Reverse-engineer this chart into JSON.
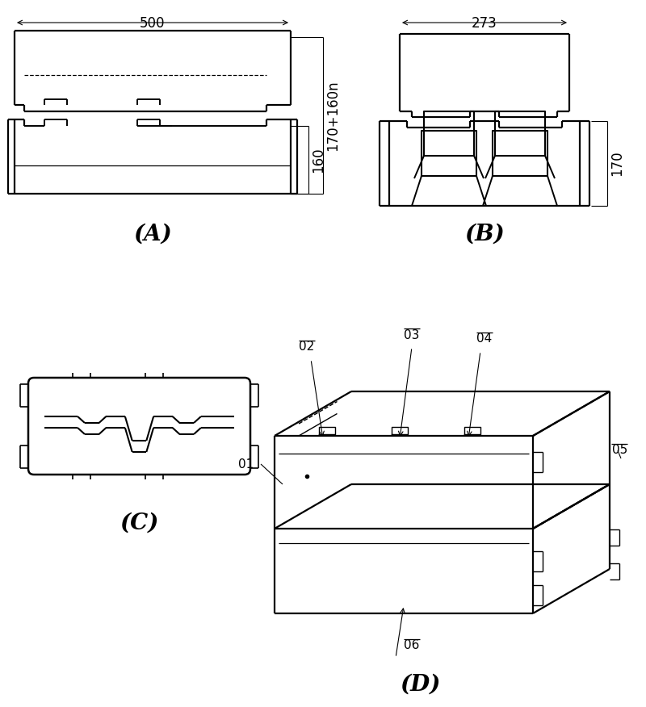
{
  "bg_color": "#ffffff",
  "line_color": "#000000",
  "label_A": "(A)",
  "label_B": "(B)",
  "label_C": "(C)",
  "label_D": "(D)",
  "dim_500": "500",
  "dim_160": "160",
  "dim_170_160": "170+160n",
  "dim_273": "273",
  "dim_170": "170",
  "labels_D": [
    "01",
    "02",
    "03",
    "04",
    "05",
    "06"
  ],
  "label_fontsize": 20,
  "dim_fontsize": 12
}
